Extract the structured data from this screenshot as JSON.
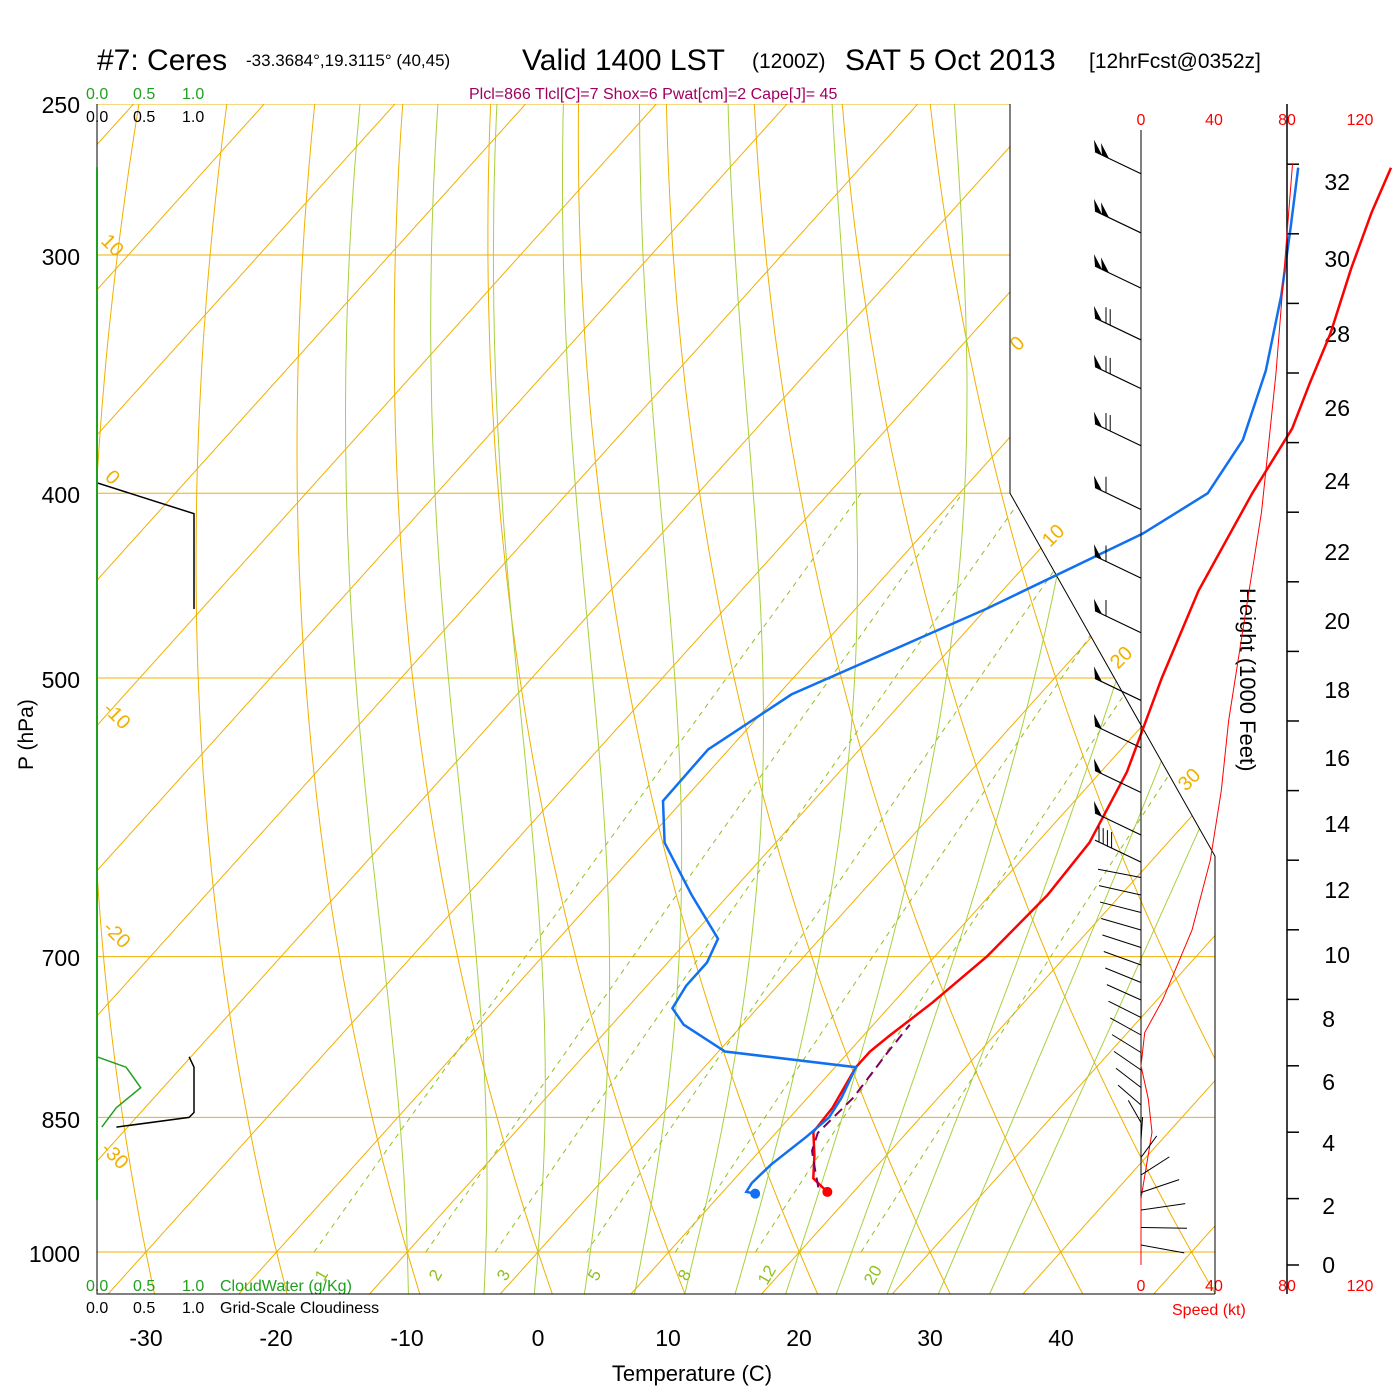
{
  "header": {
    "station": "#7: Ceres",
    "coords": "-33.3684°,19.3115° (40,45)",
    "valid": "Valid 1400 LST",
    "zulu": "(1200Z)",
    "date": "SAT 5 Oct 2013",
    "forecast": "[12hrFcst@0352z]",
    "indices": "Plcl=866 Tlcl[C]=7 Shox=6 Pwat[cm]=2 Cape[J]= 45"
  },
  "colors": {
    "temperature": "#ff0000",
    "dewpoint": "#1070f0",
    "parcel": "#800060",
    "isobar": "#f0b000",
    "dry_adiabat": "#f0b000",
    "moist_adiabat": "#a8d040",
    "mixing_ratio": "#90c020",
    "cloudwater": "#20a020",
    "indices_text": "#a00060",
    "speed": "#ff0000"
  },
  "legend": {
    "cloudwater_top_ticks": [
      "0.0",
      "0.5",
      "1.0"
    ],
    "cloudiness_top_ticks": [
      "0.0",
      "0.5",
      "1.0"
    ],
    "cloudwater_bottom_ticks": [
      "0.0",
      "0.5",
      "1.0"
    ],
    "cloudiness_bottom_ticks": [
      "0.0",
      "0.5",
      "1.0"
    ],
    "cloudwater_label": "CloudWater (g/Kg)",
    "cloudiness_label": "Grid-Scale Cloudiness"
  },
  "axes": {
    "pressure_label": "P (hPa)",
    "pressure_ticks": [
      "250",
      "300",
      "400",
      "500",
      "700",
      "850",
      "1000"
    ],
    "temperature_label": "Temperature (C)",
    "temperature_ticks": [
      "-30",
      "-20",
      "-10",
      "0",
      "10",
      "20",
      "30",
      "40"
    ],
    "height_label": "Height (1000 Feet)",
    "height_ticks": [
      "0",
      "2",
      "4",
      "6",
      "8",
      "10",
      "12",
      "14",
      "16",
      "18",
      "20",
      "22",
      "24",
      "26",
      "28",
      "30",
      "32"
    ],
    "speed_top_ticks": [
      "0",
      "40",
      "80",
      "120"
    ],
    "speed_bottom_ticks": [
      "0",
      "40",
      "80",
      "120"
    ],
    "speed_label": "Speed (kt)"
  },
  "isotherm_labels": [
    "10",
    "0",
    "-10",
    "-20",
    "-30",
    "0",
    "10",
    "20",
    "30"
  ],
  "mixing_ratio_labels": [
    "1",
    "2",
    "3",
    "5",
    "8",
    "12",
    "20"
  ],
  "chart_data": {
    "type": "line",
    "title": "#7: Ceres  Valid 1400 LST (1200Z) SAT 5 Oct 2013",
    "xlabel": "Temperature (C)",
    "ylabel": "P (hPa)",
    "y_scale": "log",
    "ylim": [
      1000,
      250
    ],
    "series": [
      {
        "name": "Temperature",
        "points": [
          [
            930,
            18.0
          ],
          [
            915,
            16.0
          ],
          [
            890,
            14.5
          ],
          [
            865,
            12.8
          ],
          [
            840,
            12.6
          ],
          [
            800,
            11.6
          ],
          [
            785,
            11.6
          ],
          [
            770,
            12.0
          ],
          [
            740,
            13.0
          ],
          [
            700,
            14.0
          ],
          [
            650,
            14.4
          ],
          [
            610,
            14.0
          ],
          [
            560,
            12.0
          ],
          [
            500,
            8.2
          ],
          [
            450,
            5.0
          ],
          [
            400,
            2.4
          ],
          [
            370,
            1.0
          ],
          [
            350,
            -0.8
          ],
          [
            330,
            -2.6
          ],
          [
            305,
            -5.5
          ],
          [
            285,
            -7.8
          ],
          [
            270,
            -9.4
          ]
        ]
      },
      {
        "name": "Dewpoint",
        "points": [
          [
            932,
            12.6
          ],
          [
            930,
            11.8
          ],
          [
            920,
            11.6
          ],
          [
            900,
            11.8
          ],
          [
            870,
            12.6
          ],
          [
            850,
            13.0
          ],
          [
            830,
            12.6
          ],
          [
            800,
            11.6
          ],
          [
            785,
            0.5
          ],
          [
            760,
            -4.5
          ],
          [
            745,
            -6.5
          ],
          [
            725,
            -7.0
          ],
          [
            705,
            -7.0
          ],
          [
            685,
            -7.8
          ],
          [
            650,
            -12.8
          ],
          [
            610,
            -18.5
          ],
          [
            580,
            -21.5
          ],
          [
            545,
            -21.6
          ],
          [
            510,
            -19.0
          ],
          [
            460,
            -10.0
          ],
          [
            420,
            -3.2
          ],
          [
            400,
            -1.0
          ],
          [
            375,
            -2.0
          ],
          [
            345,
            -5.0
          ],
          [
            315,
            -9.0
          ],
          [
            290,
            -13.0
          ],
          [
            270,
            -16.5
          ]
        ]
      },
      {
        "name": "Parcel",
        "points": [
          [
            925,
            17.0
          ],
          [
            905,
            15.5
          ],
          [
            885,
            14.0
          ],
          [
            866,
            13.2
          ],
          [
            830,
            13.5
          ],
          [
            785,
            13.0
          ],
          [
            760,
            12.8
          ]
        ]
      }
    ],
    "cloudiness_upper": [
      [
        270,
        0.0
      ],
      [
        395,
        0.0
      ],
      [
        410,
        1.0
      ],
      [
        460,
        1.0
      ]
    ],
    "cloudiness_lower": [
      [
        790,
        0.95
      ],
      [
        800,
        1.0
      ],
      [
        845,
        1.0
      ],
      [
        850,
        0.95
      ],
      [
        860,
        0.2
      ]
    ],
    "cloudwater_lower": [
      [
        790,
        0.0
      ],
      [
        800,
        0.3
      ],
      [
        820,
        0.45
      ],
      [
        840,
        0.2
      ],
      [
        860,
        0.05
      ]
    ],
    "wind_speed_profile": [
      [
        0,
        0
      ],
      [
        2,
        0
      ],
      [
        4,
        6
      ],
      [
        5,
        4
      ],
      [
        6,
        0
      ],
      [
        7,
        2
      ],
      [
        8,
        12
      ],
      [
        10,
        28
      ],
      [
        12,
        38
      ],
      [
        14,
        44
      ],
      [
        16,
        48
      ],
      [
        18,
        54
      ],
      [
        20,
        60
      ],
      [
        22,
        66
      ],
      [
        24,
        70
      ],
      [
        26,
        74
      ],
      [
        28,
        77
      ],
      [
        30,
        80
      ],
      [
        32,
        83
      ]
    ],
    "wind_barbs": [
      {
        "p": 270,
        "speed": 100
      },
      {
        "p": 290,
        "speed": 100
      },
      {
        "p": 310,
        "speed": 100
      },
      {
        "p": 330,
        "speed": 75
      },
      {
        "p": 350,
        "speed": 75
      },
      {
        "p": 375,
        "speed": 70
      },
      {
        "p": 405,
        "speed": 65
      },
      {
        "p": 440,
        "speed": 60
      },
      {
        "p": 470,
        "speed": 60
      },
      {
        "p": 510,
        "speed": 55
      },
      {
        "p": 540,
        "speed": 55
      },
      {
        "p": 570,
        "speed": 55
      },
      {
        "p": 600,
        "speed": 50
      },
      {
        "p": 620,
        "speed": 40
      }
    ]
  }
}
